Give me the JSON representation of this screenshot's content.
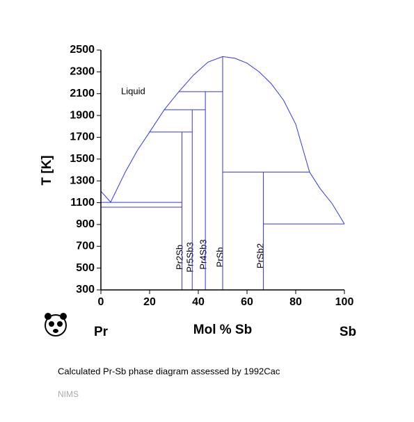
{
  "chart_data": {
    "type": "line",
    "xlabel": "Mol % Sb",
    "ylabel": "T [K]",
    "left_label": "Pr",
    "right_label": "Sb",
    "region_label": "Liquid",
    "phases": [
      "Pr2Sb",
      "Pr5Sb3",
      "Pr4Sb3",
      "PrSb",
      "PrSb2"
    ],
    "caption": "Calculated Pr-Sb phase diagram assessed by 1992Cac",
    "footer": "NIMS",
    "xlim": [
      0,
      100
    ],
    "ylim": [
      300,
      2500
    ],
    "xticks": [
      0,
      20,
      40,
      60,
      80,
      100
    ],
    "yticks": [
      300,
      500,
      700,
      900,
      1100,
      1300,
      1500,
      1700,
      1900,
      2100,
      2300,
      2500
    ],
    "series": [
      {
        "color": "#3333ff",
        "x": [
          0,
          4,
          10,
          15,
          20,
          26,
          32,
          38,
          44,
          50,
          55,
          60,
          65,
          70,
          75,
          80,
          85.7,
          90,
          95,
          100
        ],
        "values": [
          1205,
          1105,
          1380,
          1580,
          1748,
          1952,
          2118,
          2270,
          2390,
          2440,
          2425,
          2380,
          2300,
          2190,
          2040,
          1820,
          1380,
          1230,
          1090,
          905
        ]
      },
      {
        "color": "#3333ff",
        "x": [
          0,
          33.3
        ],
        "values": [
          1103,
          1103
        ]
      },
      {
        "color": "#3333ff",
        "x": [
          0,
          33.3
        ],
        "values": [
          1059,
          1059
        ]
      },
      {
        "color": "#3333ff",
        "x": [
          20,
          37.5
        ],
        "values": [
          1748,
          1748
        ]
      },
      {
        "color": "#3333ff",
        "x": [
          26,
          42.9
        ],
        "values": [
          1952,
          1952
        ]
      },
      {
        "color": "#3333ff",
        "x": [
          32,
          50
        ],
        "values": [
          2118,
          2118
        ]
      },
      {
        "color": "#3333ff",
        "x": [
          50,
          85.7
        ],
        "values": [
          1380,
          1380
        ]
      },
      {
        "color": "#3333ff",
        "x": [
          66.7,
          100
        ],
        "values": [
          905,
          905
        ]
      },
      {
        "color": "#3333ff",
        "x": [
          33.3,
          33.3
        ],
        "values": [
          300,
          1748
        ]
      },
      {
        "color": "#3333ff",
        "x": [
          37.5,
          37.5
        ],
        "values": [
          300,
          1952
        ]
      },
      {
        "color": "#3333ff",
        "x": [
          42.9,
          42.9
        ],
        "values": [
          300,
          2118
        ]
      },
      {
        "color": "#3333ff",
        "x": [
          50,
          50
        ],
        "values": [
          300,
          2440
        ]
      },
      {
        "color": "#3333ff",
        "x": [
          66.7,
          66.7
        ],
        "values": [
          300,
          1380
        ]
      }
    ]
  }
}
